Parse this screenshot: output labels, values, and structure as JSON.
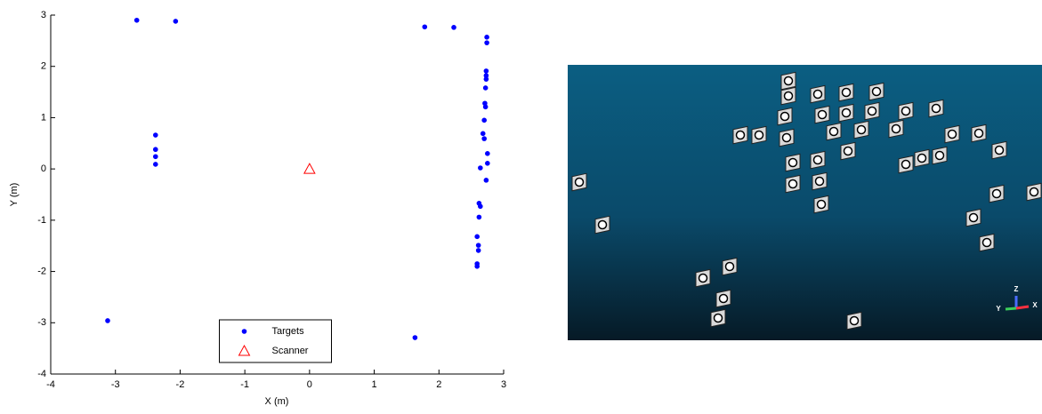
{
  "chart_data": {
    "type": "scatter",
    "xlabel": "X (m)",
    "ylabel": "Y (m)",
    "xlim": [
      -4,
      3
    ],
    "ylim": [
      -4,
      3
    ],
    "xticks": [
      -4,
      -3,
      -2,
      -1,
      0,
      1,
      2,
      3
    ],
    "yticks": [
      -4,
      -3,
      -2,
      -1,
      0,
      1,
      2,
      3
    ],
    "grid": false,
    "legend": "lower center",
    "series": [
      {
        "name": "Targets",
        "color": "#0000ff",
        "marker": "circle",
        "x": [
          -2.67,
          -2.07,
          -2.38,
          -2.38,
          -2.38,
          -2.38,
          -3.12,
          1.63,
          1.78,
          2.23,
          2.74,
          2.74,
          2.73,
          2.73,
          2.73,
          2.72,
          2.71,
          2.72,
          2.7,
          2.68,
          2.7,
          2.75,
          2.75,
          2.64,
          2.73,
          2.62,
          2.64,
          2.62,
          2.59,
          2.61,
          2.61,
          2.59,
          2.59
        ],
        "y": [
          2.9,
          2.88,
          0.66,
          0.38,
          0.24,
          0.09,
          -2.96,
          -3.29,
          2.77,
          2.76,
          2.57,
          2.46,
          1.91,
          1.82,
          1.75,
          1.58,
          1.28,
          1.21,
          0.95,
          0.69,
          0.59,
          0.3,
          0.11,
          0.02,
          -0.22,
          -0.67,
          -0.73,
          -0.94,
          -1.32,
          -1.49,
          -1.59,
          -1.85,
          -1.9
        ]
      },
      {
        "name": "Scanner",
        "color": "#ff0000",
        "marker": "triangle",
        "x": [
          0
        ],
        "y": [
          0
        ]
      }
    ]
  },
  "render": {
    "axis_labels": [
      "Z",
      "Y",
      "X"
    ]
  }
}
